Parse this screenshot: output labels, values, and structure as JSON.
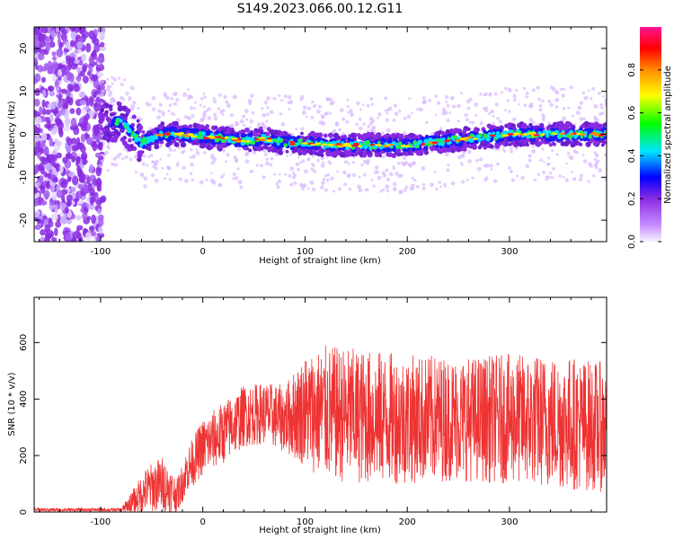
{
  "chart_data": [
    {
      "type": "heatmap",
      "title": "S149.2023.066.00.12.G11",
      "xlabel": "Height of straight line (km)",
      "ylabel": "Frequency (Hz)",
      "xlim": [
        -165,
        395
      ],
      "ylim": [
        -25,
        25
      ],
      "x_ticks": [
        -100,
        0,
        100,
        200,
        300
      ],
      "y_ticks": [
        -20,
        -10,
        0,
        10,
        20
      ],
      "colorbar": {
        "label": "Normalized spectral amplitude",
        "range": [
          0.0,
          1.0
        ],
        "ticks": [
          "0.0",
          "0.2",
          "0.4",
          "0.6",
          "0.8"
        ],
        "colors": [
          "#f8f0ff",
          "#c48cff",
          "#8a2be2",
          "#0000ff",
          "#00e5ff",
          "#00ff00",
          "#ffff00",
          "#ff8c00",
          "#ff0000",
          "#ff1493"
        ]
      },
      "ridge_frequency": {
        "x": [
          -100,
          -80,
          -60,
          -40,
          -20,
          0,
          20,
          40,
          60,
          80,
          100,
          120,
          140,
          160,
          180,
          200,
          220,
          240,
          260,
          280,
          300,
          320,
          340,
          360,
          380,
          395
        ],
        "y": [
          2,
          3,
          -2,
          0,
          0,
          -0.5,
          -1,
          -1.5,
          -1,
          -2,
          -2,
          -2.5,
          -2.5,
          -2.5,
          -2.5,
          -2.5,
          -2,
          -1.5,
          -1,
          -0.5,
          0,
          0,
          0,
          0,
          0,
          0
        ]
      }
    },
    {
      "type": "line",
      "xlabel": "Height of straight line (km)",
      "ylabel": "SNR (10 * v/v)",
      "xlim": [
        -165,
        395
      ],
      "ylim": [
        0,
        760
      ],
      "x_ticks": [
        -100,
        0,
        100,
        200,
        300
      ],
      "y_ticks": [
        0,
        200,
        400,
        600
      ],
      "color": "#ee3333",
      "envelope": {
        "x": [
          -165,
          -80,
          -70,
          -55,
          -40,
          -25,
          -15,
          0,
          20,
          40,
          60,
          80,
          100,
          120,
          150,
          200,
          250,
          300,
          350,
          395
        ],
        "mean": [
          8,
          8,
          30,
          80,
          100,
          60,
          150,
          230,
          280,
          340,
          350,
          330,
          360,
          350,
          340,
          330,
          330,
          330,
          320,
          300
        ],
        "amplitude": [
          6,
          6,
          40,
          80,
          100,
          60,
          80,
          100,
          110,
          110,
          110,
          120,
          200,
          240,
          240,
          230,
          220,
          230,
          240,
          230
        ]
      }
    }
  ]
}
